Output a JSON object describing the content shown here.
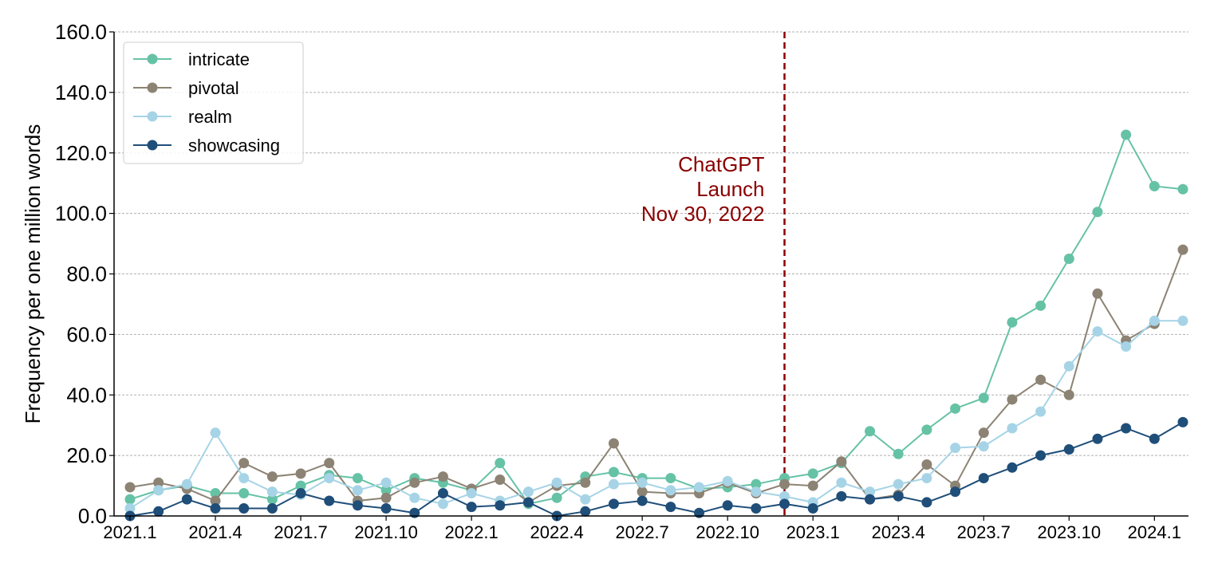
{
  "chart_data": {
    "type": "line",
    "title": "",
    "xlabel": "",
    "ylabel": "Frequency per one million words",
    "ylim": [
      0,
      160
    ],
    "grid": "horizontal dashed",
    "legend_position": "top-left",
    "x": [
      "2021.1",
      "2021.2",
      "2021.3",
      "2021.4",
      "2021.5",
      "2021.6",
      "2021.7",
      "2021.8",
      "2021.9",
      "2021.10",
      "2021.11",
      "2021.12",
      "2022.1",
      "2022.2",
      "2022.3",
      "2022.4",
      "2022.5",
      "2022.6",
      "2022.7",
      "2022.8",
      "2022.9",
      "2022.10",
      "2022.11",
      "2022.12",
      "2023.1",
      "2023.2",
      "2023.3",
      "2023.4",
      "2023.5",
      "2023.6",
      "2023.7",
      "2023.8",
      "2023.9",
      "2023.10",
      "2023.11",
      "2023.12",
      "2024.1",
      "2024.2"
    ],
    "x_ticks": [
      "2021.1",
      "2021.4",
      "2021.7",
      "2021.10",
      "2022.1",
      "2022.4",
      "2022.7",
      "2022.10",
      "2023.1",
      "2023.4",
      "2023.7",
      "2023.10",
      "2024.1"
    ],
    "y_ticks": [
      "0.0",
      "20.0",
      "40.0",
      "60.0",
      "80.0",
      "100.0",
      "120.0",
      "140.0",
      "160.0"
    ],
    "series": [
      {
        "name": "intricate",
        "color": "#66c2a5",
        "values": [
          5.5,
          8.5,
          10.0,
          7.5,
          7.5,
          5.5,
          10.0,
          13.5,
          12.5,
          8.5,
          12.5,
          11.0,
          8.5,
          17.5,
          4.0,
          6.0,
          13.0,
          14.5,
          12.5,
          12.5,
          9.0,
          9.5,
          10.5,
          12.5,
          14.0,
          17.5,
          28.0,
          20.5,
          28.5,
          35.5,
          39.0,
          64.0,
          69.5,
          85.0,
          100.5,
          126.0,
          109.0,
          108.0
        ]
      },
      {
        "name": "pivotal",
        "color": "#8c8374",
        "values": [
          9.5,
          11.0,
          9.0,
          5.0,
          17.5,
          13.0,
          14.0,
          17.5,
          5.0,
          6.0,
          11.0,
          13.0,
          9.0,
          12.0,
          4.5,
          10.0,
          11.0,
          24.0,
          8.0,
          7.5,
          7.5,
          11.0,
          7.5,
          10.5,
          10.0,
          18.0,
          5.5,
          7.0,
          17.0,
          10.0,
          27.5,
          38.5,
          45.0,
          40.0,
          73.5,
          58.0,
          63.5,
          88.0
        ]
      },
      {
        "name": "realm",
        "color": "#a6d4e6",
        "values": [
          2.5,
          8.5,
          10.5,
          27.5,
          12.5,
          8.0,
          7.0,
          12.5,
          8.5,
          11.0,
          6.0,
          4.0,
          7.5,
          5.0,
          8.0,
          11.0,
          5.5,
          10.5,
          11.0,
          8.5,
          9.5,
          11.5,
          8.0,
          6.5,
          4.5,
          11.0,
          8.0,
          10.5,
          12.5,
          22.5,
          23.0,
          29.0,
          34.5,
          49.5,
          61.0,
          56.0,
          64.5,
          64.5
        ]
      },
      {
        "name": "showcasing",
        "color": "#1f4e79",
        "values": [
          0.0,
          1.5,
          5.5,
          2.5,
          2.5,
          2.5,
          7.5,
          5.0,
          3.5,
          2.5,
          1.0,
          7.5,
          3.0,
          3.5,
          4.5,
          0.0,
          1.5,
          4.0,
          5.0,
          3.0,
          1.0,
          3.5,
          2.5,
          4.0,
          2.5,
          6.5,
          5.5,
          6.5,
          4.5,
          8.0,
          12.5,
          16.0,
          20.0,
          22.0,
          25.5,
          29.0,
          25.5,
          31.0
        ]
      }
    ],
    "annotation": {
      "lines": [
        "ChatGPT",
        "Launch",
        "Nov 30, 2022"
      ],
      "color": "#8b0000",
      "x": "2022.12"
    }
  }
}
